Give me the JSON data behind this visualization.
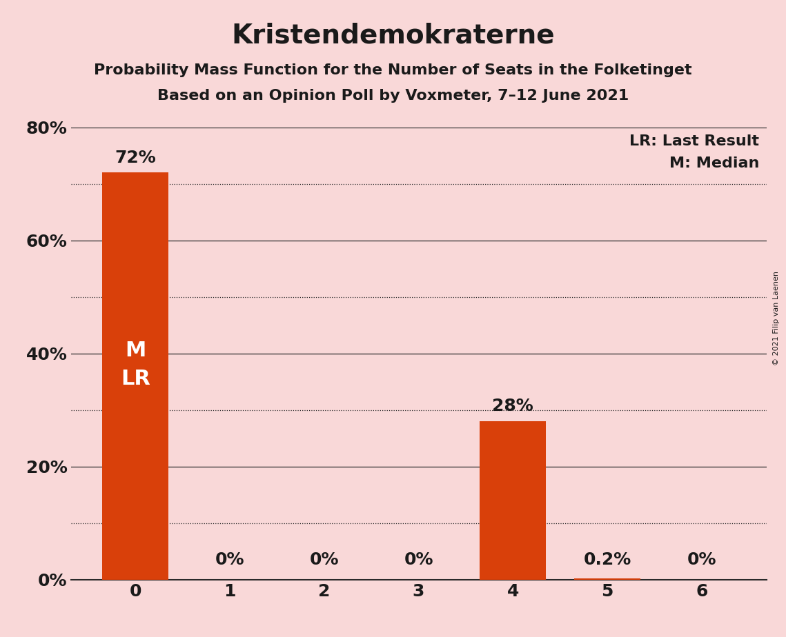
{
  "title": "Kristendemokraterne",
  "subtitle1": "Probability Mass Function for the Number of Seats in the Folketinget",
  "subtitle2": "Based on an Opinion Poll by Voxmeter, 7–12 June 2021",
  "copyright": "© 2021 Filip van Laenen",
  "categories": [
    0,
    1,
    2,
    3,
    4,
    5,
    6
  ],
  "values": [
    72,
    0,
    0,
    0,
    28,
    0.2,
    0
  ],
  "bar_color": "#d9400a",
  "background_color": "#f9d8d8",
  "bar_labels": [
    "72%",
    "0%",
    "0%",
    "0%",
    "28%",
    "0.2%",
    "0%"
  ],
  "ylim": [
    0,
    80
  ],
  "yticks": [
    0,
    20,
    40,
    60,
    80
  ],
  "ytick_labels": [
    "0%",
    "20%",
    "40%",
    "60%",
    "80%"
  ],
  "legend_lr": "LR: Last Result",
  "legend_m": "M: Median",
  "title_fontsize": 28,
  "subtitle_fontsize": 16,
  "axis_fontsize": 18,
  "bar_label_fontsize": 18,
  "legend_fontsize": 16,
  "copyright_fontsize": 8,
  "ml_label": "M\nLR",
  "ml_fontsize": 22,
  "ml_color": "white",
  "solid_gridlines": [
    0,
    20,
    40,
    60,
    80
  ],
  "dotted_gridlines": [
    10,
    30,
    50,
    70
  ],
  "bar_width": 0.7
}
